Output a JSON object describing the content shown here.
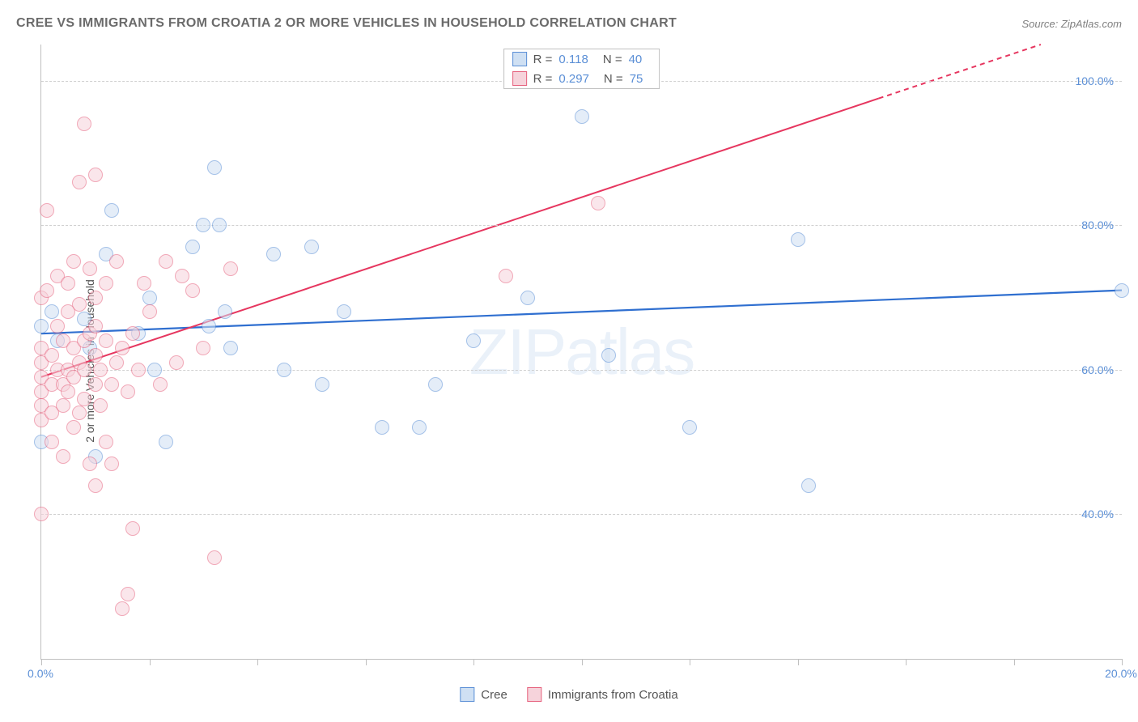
{
  "title": "CREE VS IMMIGRANTS FROM CROATIA 2 OR MORE VEHICLES IN HOUSEHOLD CORRELATION CHART",
  "source": "Source: ZipAtlas.com",
  "watermark_text_bold": "ZIP",
  "watermark_text_light": "atlas",
  "y_axis_label": "2 or more Vehicles in Household",
  "chart": {
    "type": "scatter",
    "xlim": [
      0,
      20
    ],
    "ylim": [
      20,
      105
    ],
    "x_ticks": [
      0,
      2,
      4,
      6,
      8,
      10,
      12,
      14,
      16,
      18,
      20
    ],
    "x_tick_labels": {
      "0": "0.0%",
      "20": "20.0%"
    },
    "y_gridlines": [
      40,
      60,
      80,
      100
    ],
    "y_tick_labels": {
      "40": "40.0%",
      "60": "60.0%",
      "80": "80.0%",
      "100": "100.0%"
    },
    "grid_color": "#d0d0d0",
    "background_color": "#ffffff",
    "point_radius": 9,
    "point_opacity": 0.55,
    "series": [
      {
        "name": "Cree",
        "fill_color": "#cfe0f3",
        "border_color": "#5b8fd6",
        "line_color": "#2f6fd0",
        "R": "0.118",
        "N": "40",
        "trend": {
          "x1": 0,
          "y1": 65,
          "x2": 20,
          "y2": 71,
          "dashed": false
        },
        "points": [
          [
            0.0,
            50
          ],
          [
            0.0,
            66
          ],
          [
            0.2,
            68
          ],
          [
            0.3,
            64
          ],
          [
            0.8,
            67
          ],
          [
            0.9,
            63
          ],
          [
            1.0,
            48
          ],
          [
            1.2,
            76
          ],
          [
            1.3,
            82
          ],
          [
            1.8,
            65
          ],
          [
            2.0,
            70
          ],
          [
            2.1,
            60
          ],
          [
            2.3,
            50
          ],
          [
            2.8,
            77
          ],
          [
            3.0,
            80
          ],
          [
            3.1,
            66
          ],
          [
            3.2,
            88
          ],
          [
            3.3,
            80
          ],
          [
            3.4,
            68
          ],
          [
            3.5,
            63
          ],
          [
            4.3,
            76
          ],
          [
            4.5,
            60
          ],
          [
            5.0,
            77
          ],
          [
            5.2,
            58
          ],
          [
            5.6,
            68
          ],
          [
            6.3,
            52
          ],
          [
            7.0,
            52
          ],
          [
            7.3,
            58
          ],
          [
            8.0,
            64
          ],
          [
            9.0,
            70
          ],
          [
            10.0,
            95
          ],
          [
            10.5,
            62
          ],
          [
            12.0,
            52
          ],
          [
            14.0,
            78
          ],
          [
            14.2,
            44
          ],
          [
            20.0,
            71
          ]
        ]
      },
      {
        "name": "Immigrants from Croatia",
        "fill_color": "#f6d3db",
        "border_color": "#e6617d",
        "line_color": "#e6365f",
        "R": "0.297",
        "N": "75",
        "trend": {
          "x1": 0,
          "y1": 59,
          "x2": 18.5,
          "y2": 105,
          "dashed_from_x": 15.5
        },
        "points": [
          [
            0.0,
            40
          ],
          [
            0.0,
            53
          ],
          [
            0.0,
            55
          ],
          [
            0.0,
            57
          ],
          [
            0.0,
            59
          ],
          [
            0.0,
            61
          ],
          [
            0.0,
            63
          ],
          [
            0.0,
            70
          ],
          [
            0.1,
            71
          ],
          [
            0.1,
            82
          ],
          [
            0.2,
            50
          ],
          [
            0.2,
            54
          ],
          [
            0.2,
            58
          ],
          [
            0.2,
            62
          ],
          [
            0.3,
            60
          ],
          [
            0.3,
            66
          ],
          [
            0.3,
            73
          ],
          [
            0.4,
            48
          ],
          [
            0.4,
            55
          ],
          [
            0.4,
            58
          ],
          [
            0.4,
            64
          ],
          [
            0.5,
            57
          ],
          [
            0.5,
            60
          ],
          [
            0.5,
            68
          ],
          [
            0.5,
            72
          ],
          [
            0.6,
            52
          ],
          [
            0.6,
            59
          ],
          [
            0.6,
            63
          ],
          [
            0.6,
            75
          ],
          [
            0.7,
            54
          ],
          [
            0.7,
            61
          ],
          [
            0.7,
            69
          ],
          [
            0.7,
            86
          ],
          [
            0.8,
            56
          ],
          [
            0.8,
            60
          ],
          [
            0.8,
            64
          ],
          [
            0.8,
            94
          ],
          [
            0.9,
            47
          ],
          [
            0.9,
            65
          ],
          [
            0.9,
            74
          ],
          [
            1.0,
            44
          ],
          [
            1.0,
            58
          ],
          [
            1.0,
            62
          ],
          [
            1.0,
            66
          ],
          [
            1.0,
            70
          ],
          [
            1.0,
            87
          ],
          [
            1.1,
            55
          ],
          [
            1.1,
            60
          ],
          [
            1.2,
            50
          ],
          [
            1.2,
            64
          ],
          [
            1.2,
            72
          ],
          [
            1.3,
            47
          ],
          [
            1.3,
            58
          ],
          [
            1.4,
            61
          ],
          [
            1.4,
            75
          ],
          [
            1.5,
            27
          ],
          [
            1.5,
            63
          ],
          [
            1.6,
            29
          ],
          [
            1.6,
            57
          ],
          [
            1.7,
            38
          ],
          [
            1.7,
            65
          ],
          [
            1.8,
            60
          ],
          [
            1.9,
            72
          ],
          [
            2.0,
            68
          ],
          [
            2.2,
            58
          ],
          [
            2.3,
            75
          ],
          [
            2.5,
            61
          ],
          [
            2.6,
            73
          ],
          [
            2.8,
            71
          ],
          [
            3.0,
            63
          ],
          [
            3.2,
            34
          ],
          [
            3.5,
            74
          ],
          [
            8.6,
            73
          ],
          [
            10.3,
            83
          ]
        ]
      }
    ]
  },
  "legend": {
    "series1_label": "Cree",
    "series2_label": "Immigrants from Croatia"
  },
  "colors": {
    "text_gray": "#6b6b6b",
    "text_value": "#5b8fd6"
  }
}
